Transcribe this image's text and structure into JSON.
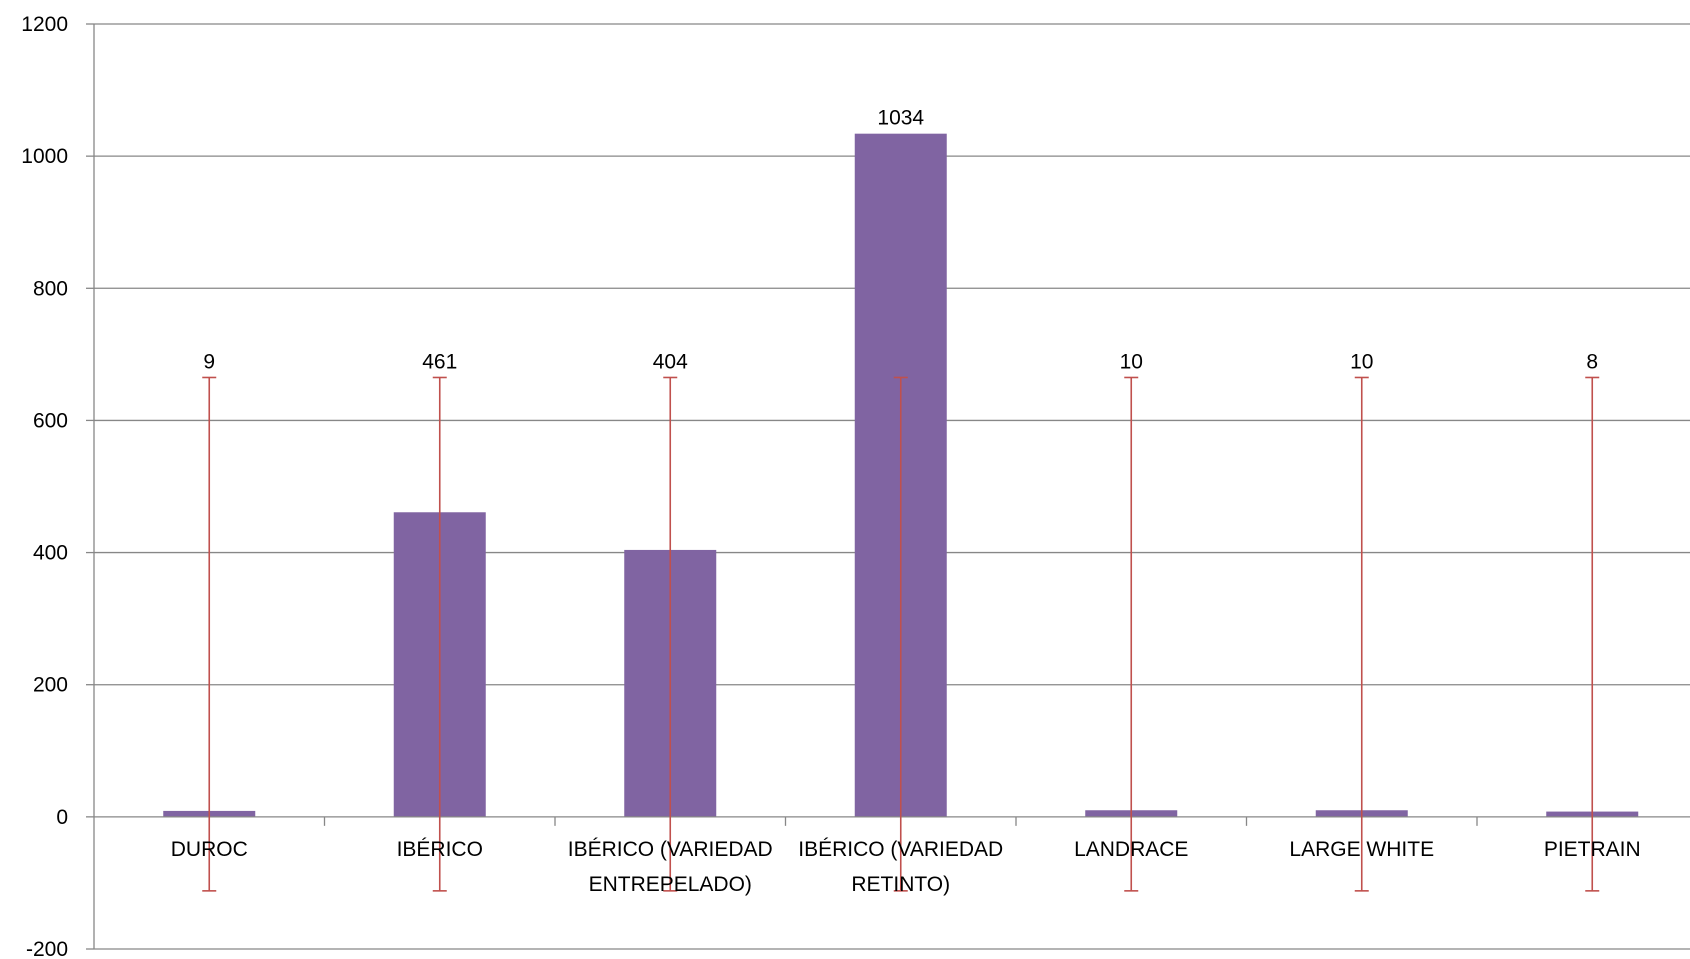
{
  "chart_data": {
    "type": "bar",
    "categories": [
      [
        "DUROC"
      ],
      [
        "IBÉRICO"
      ],
      [
        "IBÉRICO (VARIEDAD",
        "ENTREPELADO)"
      ],
      [
        "IBÉRICO (VARIEDAD",
        "RETINTO)"
      ],
      [
        "LANDRACE"
      ],
      [
        "LARGE WHITE"
      ],
      [
        "PIETRAIN"
      ]
    ],
    "values": [
      9,
      461,
      404,
      1034,
      10,
      10,
      8
    ],
    "data_labels": [
      "9",
      "461",
      "404",
      "1034",
      "10",
      "10",
      "8"
    ],
    "error_bars": {
      "low": -112,
      "high": 665
    },
    "yticks": [
      "1200",
      "1000",
      "800",
      "600",
      "400",
      "200",
      "0",
      "-200"
    ],
    "ylim": [
      -200,
      1200
    ],
    "grid": true,
    "legend": "none",
    "bar_color": "#8064A2",
    "error_bar_color": "#C0504D",
    "grid_color": "#878787"
  }
}
